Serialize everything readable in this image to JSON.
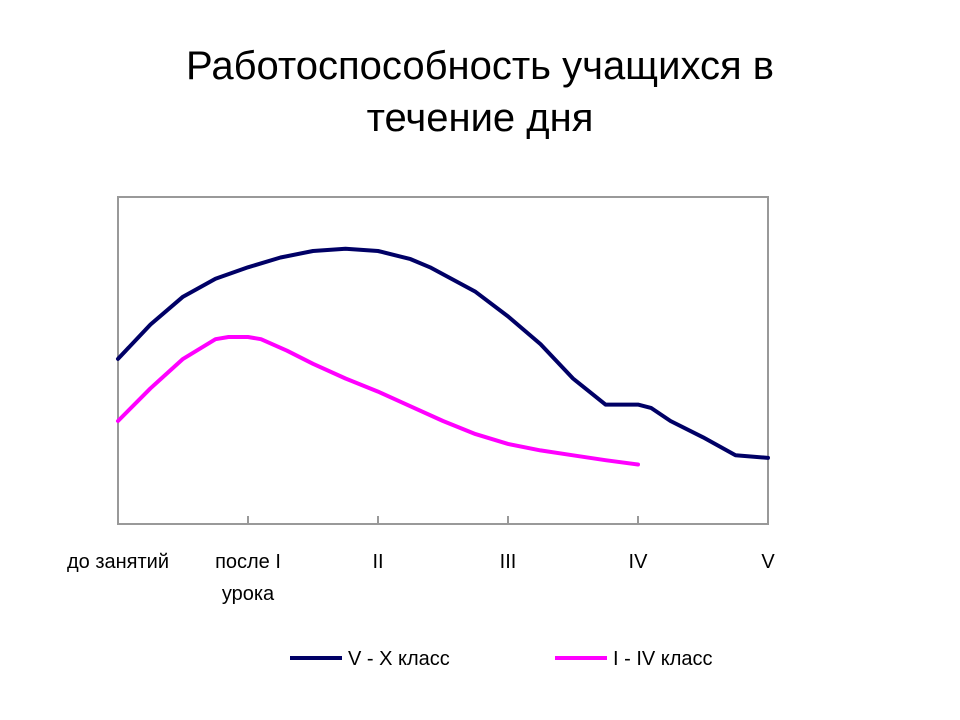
{
  "slide_title": [
    "Работоспособность учащихся в",
    "течение дня"
  ],
  "chart_data": {
    "type": "line",
    "title": "Работоспособность учащихся в течение дня",
    "categories": [
      [
        "до занятий"
      ],
      [
        "после I",
        "урока"
      ],
      [
        "II"
      ],
      [
        "III"
      ],
      [
        "IV"
      ],
      [
        "V"
      ]
    ],
    "x_range": [
      0,
      5
    ],
    "y_range": [
      0,
      100
    ],
    "grid": false,
    "legend_position": "bottom",
    "series": [
      {
        "name": "V - X класс",
        "color": "#000066",
        "points": [
          [
            0,
            50.5
          ],
          [
            0.25,
            61
          ],
          [
            0.5,
            69.5
          ],
          [
            0.75,
            75
          ],
          [
            1,
            78.5
          ],
          [
            1.25,
            81.5
          ],
          [
            1.5,
            83.5
          ],
          [
            1.75,
            84.2
          ],
          [
            2,
            83.5
          ],
          [
            2.25,
            81
          ],
          [
            2.4,
            78.5
          ],
          [
            2.75,
            71
          ],
          [
            3,
            63.5
          ],
          [
            3.25,
            55
          ],
          [
            3.5,
            44.5
          ],
          [
            3.75,
            36.5
          ],
          [
            4,
            36.5
          ],
          [
            4.1,
            35.5
          ],
          [
            4.25,
            31.5
          ],
          [
            4.5,
            26.5
          ],
          [
            4.75,
            21
          ],
          [
            5,
            20.2
          ]
        ],
        "note": "peak between 'после I урока' and 'II'"
      },
      {
        "name": "I - IV класс",
        "color": "#ff00ff",
        "points": [
          [
            0,
            31.5
          ],
          [
            0.25,
            41.5
          ],
          [
            0.5,
            50.5
          ],
          [
            0.75,
            56.5
          ],
          [
            0.85,
            57.2
          ],
          [
            1,
            57.2
          ],
          [
            1.1,
            56.5
          ],
          [
            1.3,
            53
          ],
          [
            1.5,
            49
          ],
          [
            1.75,
            44.5
          ],
          [
            2,
            40.5
          ],
          [
            2.25,
            36
          ],
          [
            2.5,
            31.5
          ],
          [
            2.75,
            27.5
          ],
          [
            3,
            24.5
          ],
          [
            3.25,
            22.5
          ],
          [
            3.5,
            21
          ],
          [
            3.75,
            19.5
          ],
          [
            4,
            18.2
          ]
        ]
      }
    ]
  }
}
